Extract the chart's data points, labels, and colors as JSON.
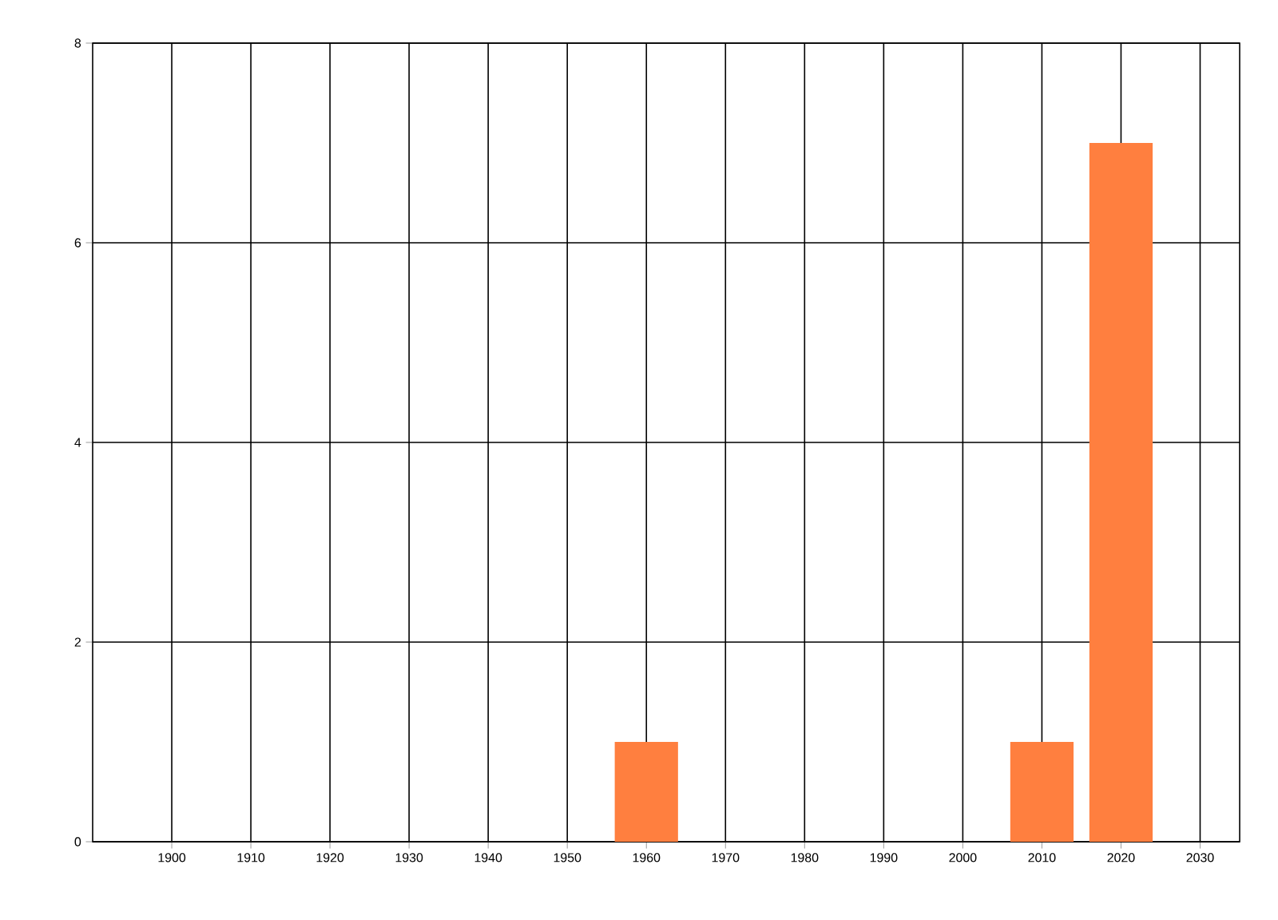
{
  "chart_data": {
    "type": "bar",
    "x": [
      1960,
      2010,
      2020
    ],
    "values": [
      1,
      1,
      7
    ],
    "color": "#ff7f3f",
    "xlim": [
      1890,
      2035
    ],
    "xticks": [
      1900,
      1910,
      1920,
      1930,
      1940,
      1950,
      1960,
      1970,
      1980,
      1990,
      2000,
      2010,
      2020,
      2030
    ],
    "ylim": [
      0,
      8
    ],
    "yticks": [
      0,
      2,
      4,
      6,
      8
    ],
    "grid": true
  }
}
